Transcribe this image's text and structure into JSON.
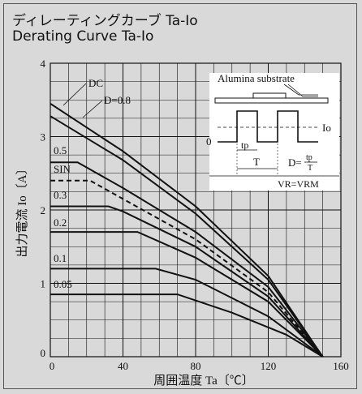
{
  "header": {
    "title_jp": "ディレーティングカーブ Ta-Io",
    "title_en": "Derating Curve Ta-Io"
  },
  "chart_data": {
    "type": "line",
    "title": "Derating Curve Ta-Io",
    "xlabel": "周囲温度 Ta〔℃〕",
    "ylabel": "出力電流 Io〔A〕",
    "xlim": [
      0,
      160
    ],
    "ylim": [
      0,
      4
    ],
    "xticks": [
      0,
      40,
      80,
      120,
      160
    ],
    "yticks": [
      0,
      1,
      2,
      3,
      4
    ],
    "grid": true,
    "series": [
      {
        "name": "DC",
        "dashed": false,
        "x": [
          0,
          40,
          80,
          120,
          150
        ],
        "y": [
          3.45,
          2.8,
          2.05,
          1.1,
          0
        ]
      },
      {
        "name": "D=0.8",
        "dashed": false,
        "x": [
          0,
          40,
          80,
          120,
          150
        ],
        "y": [
          3.28,
          2.68,
          1.95,
          1.05,
          0
        ]
      },
      {
        "name": "0.5",
        "dashed": false,
        "x": [
          0,
          15,
          40,
          80,
          120,
          150
        ],
        "y": [
          2.65,
          2.65,
          2.3,
          1.7,
          0.95,
          0
        ]
      },
      {
        "name": "SIN",
        "dashed": true,
        "x": [
          0,
          22,
          40,
          80,
          120,
          150
        ],
        "y": [
          2.4,
          2.4,
          2.15,
          1.6,
          0.88,
          0
        ]
      },
      {
        "name": "0.3",
        "dashed": false,
        "x": [
          0,
          32,
          40,
          80,
          120,
          150
        ],
        "y": [
          2.05,
          2.05,
          1.98,
          1.5,
          0.82,
          0
        ]
      },
      {
        "name": "0.2",
        "dashed": false,
        "x": [
          0,
          48,
          80,
          120,
          150
        ],
        "y": [
          1.7,
          1.7,
          1.35,
          0.75,
          0
        ]
      },
      {
        "name": "0.1",
        "dashed": false,
        "x": [
          0,
          58,
          80,
          120,
          150
        ],
        "y": [
          1.2,
          1.2,
          1.05,
          0.55,
          0
        ]
      },
      {
        "name": "0.05",
        "dashed": false,
        "x": [
          0,
          70,
          100,
          130,
          150
        ],
        "y": [
          0.85,
          0.85,
          0.6,
          0.3,
          0
        ]
      }
    ]
  },
  "inset": {
    "substrate_label": "Alumina substrate",
    "zero_label": "0",
    "io_label": "Io",
    "tp_label": "tp",
    "t_label": "T",
    "duty_prefix": "D=",
    "duty_num": "tp",
    "duty_den": "T",
    "vr_label": "VR=VRM"
  }
}
